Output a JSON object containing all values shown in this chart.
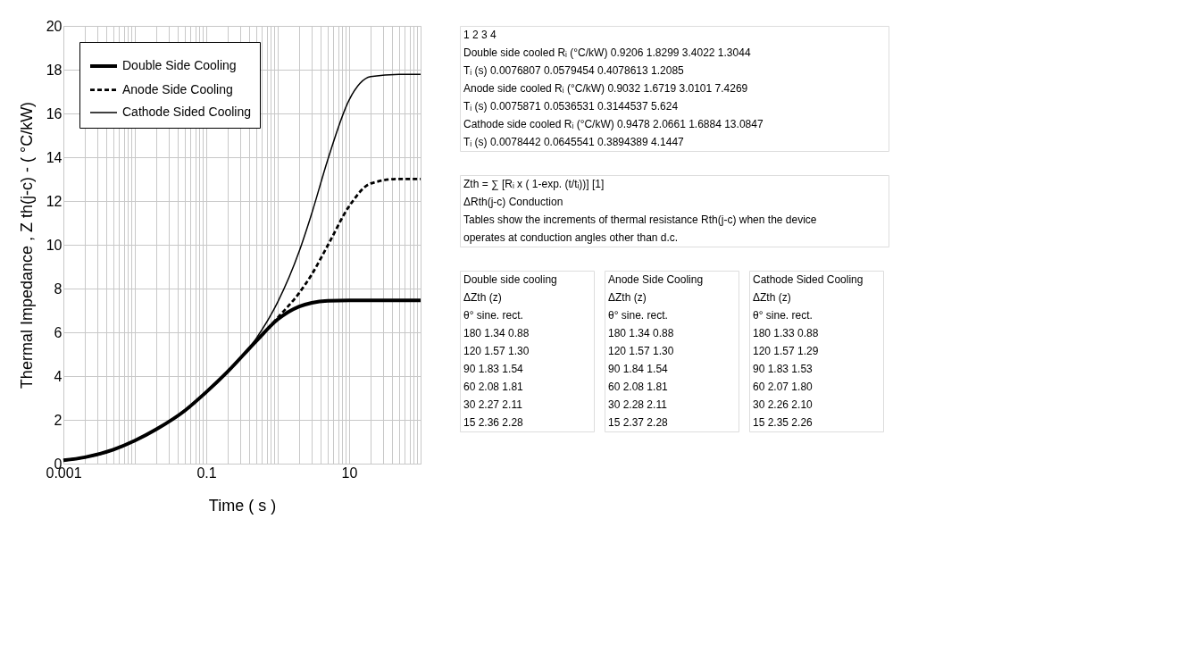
{
  "chart_data": [
    {
      "type": "line",
      "xlabel": "Time ( s )",
      "ylabel": "Thermal Impedance , Z th(j-c) - ( °C/kW)",
      "x": [
        0.001,
        0.002,
        0.005,
        0.01,
        0.02,
        0.05,
        0.1,
        0.2,
        0.5,
        1,
        2,
        3,
        5,
        10,
        20,
        50,
        100
      ],
      "series": [
        {
          "name": "Double Side Cooling",
          "color": "#000000",
          "line_style": "solid",
          "values": [
            0.15,
            0.29,
            0.64,
            1.05,
            1.57,
            2.42,
            3.27,
            4.21,
            5.6,
            6.59,
            7.18,
            7.35,
            7.44,
            7.46,
            7.46,
            7.46,
            7.46
          ]
        },
        {
          "name": "Anode Side Cooling",
          "color": "#000000",
          "line_style": "dashed",
          "values": [
            0.15,
            0.29,
            0.64,
            1.05,
            1.57,
            2.42,
            3.27,
            4.21,
            5.6,
            6.67,
            7.8,
            8.65,
            9.96,
            11.76,
            12.8,
            13.01,
            13.01
          ]
        },
        {
          "name": "Cathode Sided Cooling",
          "color": "#000000",
          "line_style": "solid",
          "values": [
            0.15,
            0.29,
            0.64,
            1.05,
            1.57,
            2.42,
            3.27,
            4.22,
            5.72,
            7.38,
            9.7,
            11.44,
            13.87,
            16.62,
            17.68,
            17.79,
            17.79
          ]
        }
      ],
      "log": "x",
      "xlim": [
        0.001,
        100
      ],
      "xticks": [
        0.001,
        {
          "value": 0.002,
          "label": null
        },
        {
          "value": 0.003,
          "label": null
        },
        {
          "value": 0.004,
          "label": null
        },
        {
          "value": 0.005,
          "label": null
        },
        {
          "value": 0.006,
          "label": null
        },
        {
          "value": 0.007,
          "label": null
        },
        {
          "value": 0.008,
          "label": null
        },
        {
          "value": 0.009,
          "label": null
        },
        {
          "value": 0.01,
          "label": null
        },
        {
          "value": 0.02,
          "label": null
        },
        {
          "value": 0.03,
          "label": null
        },
        {
          "value": 0.04,
          "label": null
        },
        {
          "value": 0.05,
          "label": null
        },
        {
          "value": 0.06,
          "label": null
        },
        {
          "value": 0.07,
          "label": null
        },
        {
          "value": 0.08,
          "label": null
        },
        {
          "value": 0.09,
          "label": null
        },
        0.1,
        {
          "value": 0.2,
          "label": null
        },
        {
          "value": 0.3,
          "label": null
        },
        {
          "value": 0.4,
          "label": null
        },
        {
          "value": 0.5,
          "label": null
        },
        {
          "value": 0.6,
          "label": null
        },
        {
          "value": 0.7,
          "label": null
        },
        {
          "value": 0.8,
          "label": null
        },
        {
          "value": 0.9,
          "label": null
        },
        {
          "value": 1,
          "label": null
        },
        {
          "value": 2,
          "label": null
        },
        {
          "value": 3,
          "label": null
        },
        {
          "value": 4,
          "label": null
        },
        {
          "value": 5,
          "label": null
        },
        {
          "value": 6,
          "label": null
        },
        {
          "value": 7,
          "label": null
        },
        {
          "value": 8,
          "label": null
        },
        {
          "value": 9,
          "label": null
        },
        10,
        {
          "value": 20,
          "label": null
        },
        {
          "value": 30,
          "label": null
        },
        {
          "value": 40,
          "label": null
        },
        {
          "value": 50,
          "label": null
        },
        {
          "value": 60,
          "label": null
        },
        {
          "value": 70,
          "label": null
        },
        {
          "value": 80,
          "label": null
        },
        {
          "value": 90,
          "label": null
        },
        {
          "value": 100,
          "label": null
        }
      ],
      "ylim": [
        0,
        20
      ],
      "yticks": [
        0,
        2,
        4,
        6,
        8,
        10,
        12,
        14,
        16,
        18,
        20
      ],
      "grid": true,
      "legend": "top left"
    },
    {
      "type": "other",
      "annotations": [
        "1   2   3   4",
        "Double side cooled   Rᵢ (°C/kW)   0.9206   1.8299   3.4022   1.3044",
        "Tᵢ (s)   0.0076807   0.0579454   0.4078613   1.2085",
        "Anode side cooled   Rᵢ (°C/kW)   0.9032   1.6719   3.0101   7.4269",
        "Tᵢ (s)   0.0075871   0.0536531   0.3144537   5.624",
        "Cathode side cooled   Rᵢ (°C/kW)   0.9478   2.0661   1.6884   13.0847",
        "Tᵢ (s)   0.0078442   0.0645541   0.3894389   4.1447"
      ]
    },
    {
      "type": "other",
      "annotations": [
        "Zth = ∑ [Rᵢ x ( 1-exp. (t/tᵢ))]          [1]",
        "ΔRth(j-c) Conduction",
        "Tables show the increments of thermal resistance Rth(j-c) when the device",
        "operates at conduction angles other than d.c."
      ]
    },
    {
      "type": "other",
      "annotations": [
        "Double side cooling",
        "ΔZth (z)",
        "θ°   sine.   rect.",
        "180   1.34   0.88",
        "120   1.57   1.30",
        "90   1.83   1.54",
        "60   2.08   1.81",
        "30   2.27   2.11",
        "15   2.36   2.28"
      ]
    },
    {
      "type": "other",
      "annotations": [
        "Anode Side Cooling",
        "ΔZth (z)",
        "θ°   sine.   rect.",
        "180   1.34   0.88",
        "120   1.57   1.30",
        "90   1.84   1.54",
        "60   2.08   1.81",
        "30   2.28   2.11",
        "15   2.37   2.28"
      ]
    },
    {
      "type": "other",
      "annotations": [
        "Cathode Sided Cooling",
        "ΔZth (z)",
        "θ°   sine.   rect.",
        "180   1.33   0.88",
        "120   1.57   1.29",
        "90   1.83   1.53",
        "60   2.07   1.80",
        "30   2.26   2.10",
        "15   2.35   2.26"
      ]
    }
  ]
}
